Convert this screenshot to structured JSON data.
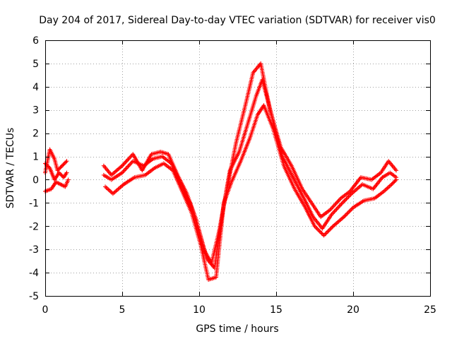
{
  "chart_data": {
    "type": "scatter",
    "title": "Day 204 of 2017, Sidereal Day-to-day VTEC variation (SDTVAR) for receiver vis0",
    "xlabel": "GPS time / hours",
    "ylabel": "SDTVAR / TECUs",
    "xlim": [
      0,
      25
    ],
    "ylim": [
      -5,
      6
    ],
    "xticks": [
      "0",
      "5",
      "10",
      "15",
      "20",
      "25"
    ],
    "yticks": [
      "-5",
      "-4",
      "-3",
      "-2",
      "-1",
      "0",
      "1",
      "2",
      "3",
      "4",
      "5",
      "6"
    ],
    "grid": true,
    "marker": "plus",
    "color": "#ff0000",
    "series": [
      {
        "x": [
          0.0,
          0.3,
          0.6,
          0.8,
          1.1,
          1.4,
          3.8,
          4.3,
          5.0,
          5.7,
          6.3,
          6.9,
          7.5,
          8.0,
          8.6,
          9.2,
          9.8,
          10.3,
          10.8,
          11.3,
          11.8,
          12.4,
          13.0,
          13.5,
          14.0,
          14.6,
          15.3,
          16.0,
          16.7,
          17.3,
          17.9,
          18.5,
          19.2,
          19.8,
          20.5,
          21.2,
          21.8,
          22.3,
          22.8
        ],
        "y": [
          0.3,
          1.3,
          0.9,
          0.4,
          0.6,
          0.8,
          0.6,
          0.2,
          0.6,
          1.1,
          0.4,
          1.1,
          1.2,
          1.1,
          0.2,
          -0.6,
          -1.7,
          -3.0,
          -3.6,
          -2.2,
          -0.4,
          1.6,
          3.2,
          4.6,
          5.0,
          3.0,
          1.4,
          0.6,
          -0.4,
          -1.0,
          -1.6,
          -1.3,
          -0.8,
          -0.5,
          0.1,
          0.0,
          0.3,
          0.8,
          0.4
        ]
      },
      {
        "x": [
          0.0,
          0.3,
          0.6,
          0.9,
          1.2,
          1.4,
          3.8,
          4.3,
          5.0,
          5.7,
          6.4,
          7.0,
          7.6,
          8.2,
          8.8,
          9.4,
          10.0,
          10.5,
          11.0,
          11.5,
          12.0,
          12.6,
          13.2,
          13.7,
          14.1,
          14.7,
          15.4,
          16.1,
          16.8,
          17.4,
          18.0,
          18.6,
          19.3,
          19.9,
          20.6,
          21.3,
          21.9,
          22.4,
          22.8
        ],
        "y": [
          0.7,
          0.5,
          0.0,
          0.3,
          0.1,
          0.3,
          0.2,
          0.0,
          0.3,
          0.8,
          0.6,
          0.9,
          1.0,
          0.7,
          -0.2,
          -1.0,
          -2.2,
          -3.4,
          -3.8,
          -1.5,
          0.4,
          1.2,
          2.5,
          3.6,
          4.3,
          2.8,
          1.0,
          0.1,
          -0.8,
          -1.6,
          -2.1,
          -1.5,
          -1.0,
          -0.6,
          -0.2,
          -0.4,
          0.1,
          0.3,
          0.1
        ]
      },
      {
        "x": [
          0.0,
          0.4,
          0.7,
          1.0,
          1.3,
          1.5,
          3.9,
          4.4,
          5.1,
          5.8,
          6.5,
          7.1,
          7.7,
          8.3,
          8.9,
          9.5,
          10.1,
          10.6,
          11.1,
          11.6,
          12.1,
          12.7,
          13.3,
          13.8,
          14.2,
          14.8,
          15.5,
          16.2,
          16.9,
          17.5,
          18.1,
          18.7,
          19.4,
          20.0,
          20.7,
          21.4,
          22.0,
          22.5,
          22.8
        ],
        "y": [
          -0.5,
          -0.4,
          -0.1,
          -0.2,
          -0.3,
          0.0,
          -0.3,
          -0.6,
          -0.2,
          0.1,
          0.2,
          0.5,
          0.7,
          0.4,
          -0.5,
          -1.4,
          -2.8,
          -4.3,
          -4.2,
          -1.0,
          -0.1,
          0.8,
          1.8,
          2.8,
          3.2,
          2.2,
          0.6,
          -0.4,
          -1.2,
          -2.0,
          -2.4,
          -2.0,
          -1.6,
          -1.2,
          -0.9,
          -0.8,
          -0.5,
          -0.2,
          0.0
        ]
      }
    ]
  }
}
